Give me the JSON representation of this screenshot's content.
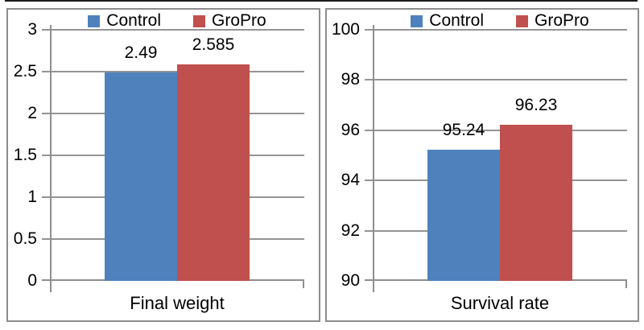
{
  "colors": {
    "control": "#4F81BD",
    "gropro": "#C0504D",
    "gridline": "#949494",
    "axis": "#8f8f8f",
    "panel_border": "#8d8d8d",
    "text": "#000000"
  },
  "legend": {
    "items": [
      {
        "label": "Control",
        "color": "#4F81BD"
      },
      {
        "label": "GroPro",
        "color": "#C0504D"
      }
    ],
    "position": "top"
  },
  "chart_data": [
    {
      "type": "bar",
      "title": "Final weight",
      "xlabel": "Final weight",
      "categories": [
        "Control",
        "GroPro"
      ],
      "series": [
        {
          "name": "Control",
          "value": 2.49,
          "label": "2.49",
          "color": "#4F81BD"
        },
        {
          "name": "GroPro",
          "value": 2.585,
          "label": "2.585",
          "color": "#C0504D"
        }
      ],
      "ylim": [
        0,
        3
      ],
      "ytick_interval": 0.5,
      "ytick_labels_top_to_bottom": [
        "3",
        "2.5",
        "2",
        "1.5",
        "1",
        "0.5",
        "0"
      ],
      "grid": true,
      "legend_position": "top"
    },
    {
      "type": "bar",
      "title": "Survival rate",
      "xlabel": "Survival rate",
      "categories": [
        "Control",
        "GroPro"
      ],
      "series": [
        {
          "name": "Control",
          "value": 95.24,
          "label": "95.24",
          "color": "#4F81BD"
        },
        {
          "name": "GroPro",
          "value": 96.23,
          "label": "96.23",
          "color": "#C0504D"
        }
      ],
      "ylim": [
        90,
        100
      ],
      "ytick_interval": 2,
      "ytick_labels_top_to_bottom": [
        "100",
        "98",
        "96",
        "94",
        "92",
        "90"
      ],
      "grid": true,
      "legend_position": "top"
    }
  ]
}
